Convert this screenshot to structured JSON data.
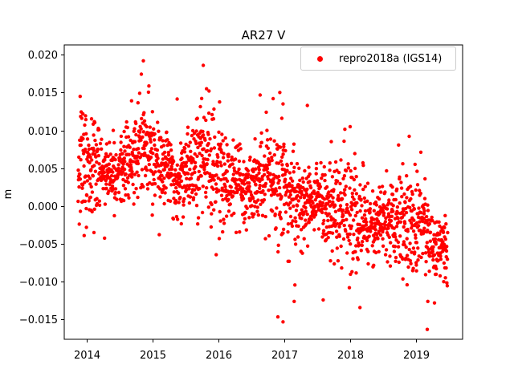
{
  "chart_data": {
    "type": "scatter",
    "title": "AR27 V",
    "xlabel": "",
    "ylabel": "m",
    "background": "#ffffff",
    "axis_color": "#000000",
    "grid": false,
    "legend": {
      "label": "repro2018a (IGS14)",
      "position": "upper right",
      "border_color": "#cccccc",
      "background": "#ffffff",
      "marker_color": "#ff0000"
    },
    "marker": {
      "color": "#ff0000",
      "radius_px": 2.2
    },
    "xlim": [
      2013.659,
      2019.707
    ],
    "ylim": [
      -0.0176,
      0.0213
    ],
    "x_ticks": {
      "values": [
        2014,
        2015,
        2016,
        2017,
        2018,
        2019
      ],
      "labels": [
        "2014",
        "2015",
        "2016",
        "2017",
        "2018",
        "2019"
      ]
    },
    "y_ticks": {
      "values": [
        0.02,
        0.015,
        0.01,
        0.005,
        0.0,
        -0.005,
        -0.01,
        -0.015
      ],
      "labels": [
        "0.020",
        "0.015",
        "0.010",
        "0.005",
        "0.000",
        "−0.005",
        "−0.010",
        "−0.015"
      ]
    },
    "series": [
      {
        "name": "repro2018a (IGS14)",
        "color": "#ff0000",
        "x_start": 2013.87,
        "x_end": 2019.48,
        "n_points": 1960,
        "trend_x": [
          2013.87,
          2014.1,
          2014.35,
          2014.6,
          2014.88,
          2015.1,
          2015.35,
          2015.6,
          2015.8,
          2016.0,
          2016.25,
          2016.5,
          2016.75,
          2016.95,
          2017.2,
          2017.5,
          2017.8,
          2018.1,
          2018.4,
          2018.7,
          2018.95,
          2019.2,
          2019.48
        ],
        "trend_y": [
          0.0052,
          0.0055,
          0.0047,
          0.0058,
          0.0068,
          0.0052,
          0.0042,
          0.0048,
          0.006,
          0.0045,
          0.0032,
          0.0028,
          0.0034,
          0.0018,
          0.0008,
          0.0012,
          -0.0002,
          -0.0012,
          -0.002,
          -0.0016,
          -0.0028,
          -0.0042,
          -0.005
        ],
        "seasonal_amplitude": 0.0006,
        "seasonal_peak_fraction": 0.85,
        "noise_std": 0.003,
        "noise_seasonal_mod": 0.3,
        "noise_peak_fraction": 0.9,
        "heavy_tail_prob": 0.015,
        "heavy_tail_scale": 2.0,
        "gap_prob": 0.02,
        "seed": 1234567,
        "outliers": [
          [
            2013.9,
            0.0145
          ],
          [
            2014.86,
            0.0192
          ],
          [
            2015.77,
            0.0186
          ],
          [
            2015.82,
            0.0155
          ],
          [
            2016.83,
            0.0142
          ],
          [
            2016.98,
            0.0135
          ],
          [
            2017.35,
            0.0133
          ],
          [
            2016.98,
            -0.0153
          ],
          [
            2017.15,
            -0.0126
          ],
          [
            2017.59,
            -0.0124
          ],
          [
            2018.0,
            0.0105
          ],
          [
            2019.17,
            -0.0163
          ],
          [
            2019.28,
            -0.0128
          ]
        ]
      }
    ]
  }
}
